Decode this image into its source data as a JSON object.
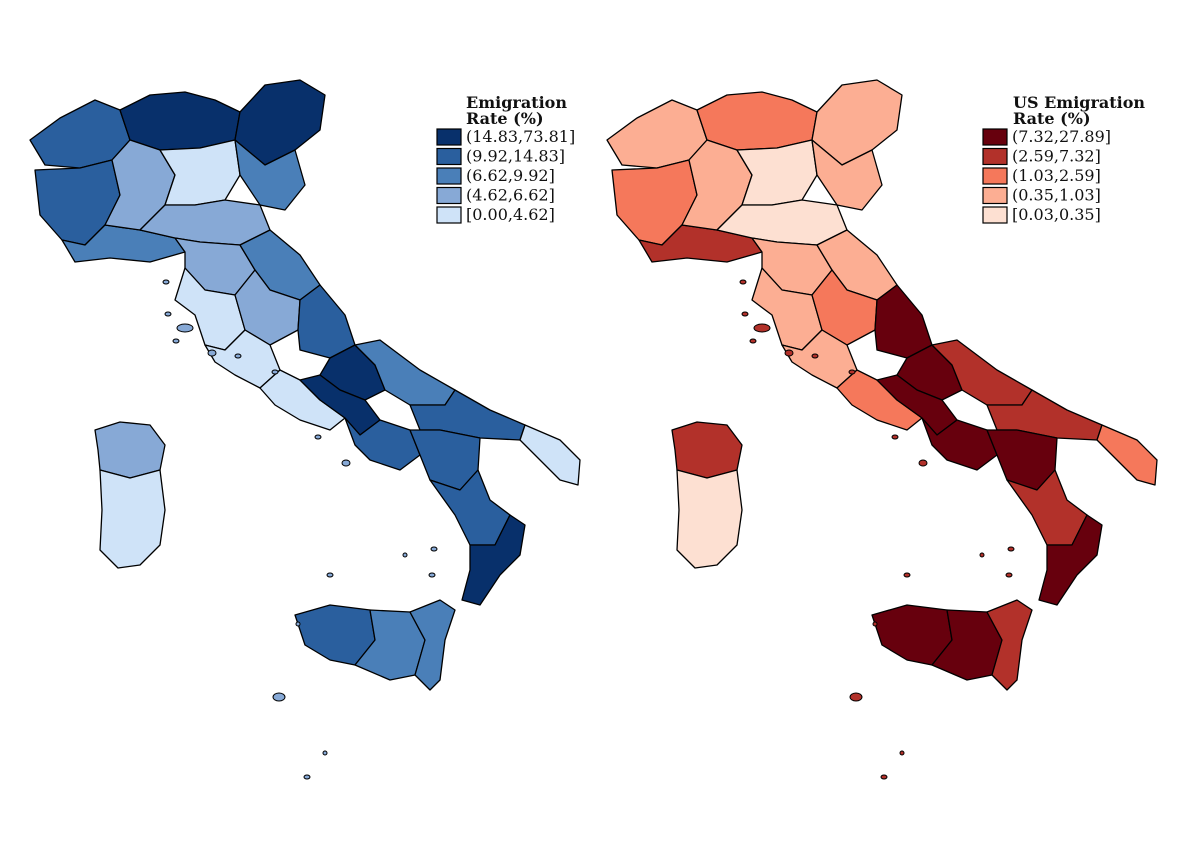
{
  "maps": [
    {
      "id": "emigration",
      "legend_title_line1": "Emigration",
      "legend_title_line2": "Rate (%)",
      "colors": [
        "#08306b",
        "#2a5f9e",
        "#4a7fb8",
        "#87a9d6",
        "#cfe3f8"
      ],
      "classes": [
        "(14.83,73.81]",
        "(9.92,14.83]",
        "(6.62,9.92]",
        "(4.62,6.62]",
        "[0.00,4.62]"
      ],
      "region_classes": {
        "alps_west": 1,
        "alps_central": 0,
        "alps_east": 0,
        "piedmont": 1,
        "liguria": 2,
        "po_west": 3,
        "po_east": 4,
        "veneto": 2,
        "emilia": 3,
        "tuscany_north": 3,
        "tuscany_south": 4,
        "marche": 2,
        "umbria": 3,
        "lazio_north": 4,
        "lazio_south": 4,
        "abruzzo": 1,
        "molise": 0,
        "campania_north": 0,
        "campania_south": 1,
        "apulia_north": 2,
        "apulia_south": 1,
        "salento": 4,
        "basilicata": 1,
        "calabria_north": 1,
        "calabria_south": 0,
        "sicily_west": 1,
        "sicily_central": 2,
        "sicily_east": 2,
        "sardinia_north": 3,
        "sardinia_south": 4
      }
    },
    {
      "id": "us_emigration",
      "legend_title_line1": "US Emigration",
      "legend_title_line2": "Rate (%)",
      "colors": [
        "#67000d",
        "#b2312a",
        "#f5785b",
        "#fcae93",
        "#fde0d2"
      ],
      "classes": [
        "(7.32,27.89]",
        "(2.59,7.32]",
        "(1.03,2.59]",
        "(0.35,1.03]",
        "[0.03,0.35]"
      ],
      "region_classes": {
        "alps_west": 3,
        "alps_central": 2,
        "alps_east": 3,
        "piedmont": 2,
        "liguria": 1,
        "po_west": 3,
        "po_east": 4,
        "veneto": 3,
        "emilia": 4,
        "tuscany_north": 3,
        "tuscany_south": 3,
        "marche": 3,
        "umbria": 2,
        "lazio_north": 3,
        "lazio_south": 2,
        "abruzzo": 0,
        "molise": 0,
        "campania_north": 0,
        "campania_south": 0,
        "apulia_north": 1,
        "apulia_south": 1,
        "salento": 2,
        "basilicata": 0,
        "calabria_north": 1,
        "calabria_south": 0,
        "sicily_west": 0,
        "sicily_central": 0,
        "sicily_east": 1,
        "sardinia_north": 1,
        "sardinia_south": 4
      }
    }
  ]
}
